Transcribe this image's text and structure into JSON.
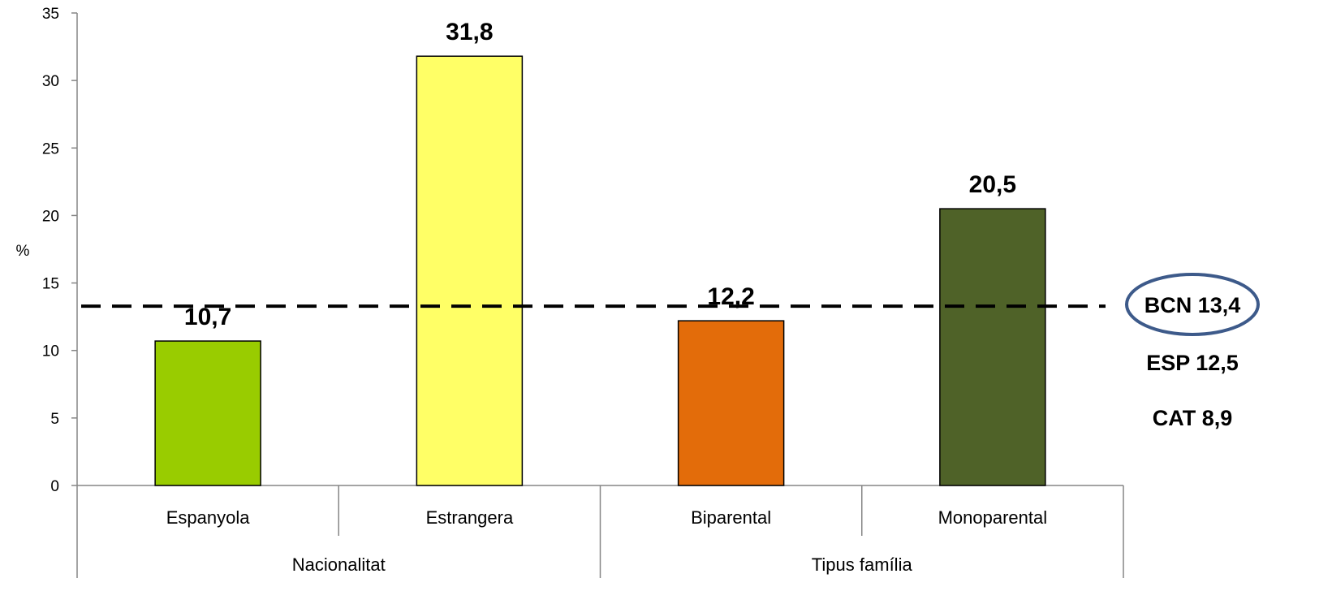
{
  "chart_data": {
    "type": "bar",
    "ylabel": "%",
    "ylim": [
      0,
      35
    ],
    "yticks": [
      "0",
      "5",
      "10",
      "15",
      "20",
      "25",
      "30",
      "35"
    ],
    "categories": [
      "Espanyola",
      "Estrangera",
      "Biparental",
      "Monoparental"
    ],
    "values": [
      10.7,
      31.8,
      12.2,
      20.5
    ],
    "value_labels": [
      "10,7",
      "31,8",
      "12,2",
      "20,5"
    ],
    "colors": [
      "#99cc00",
      "#ffff66",
      "#e36c0a",
      "#4f6228"
    ],
    "groups": [
      {
        "label": "Nacionalitat",
        "members": [
          "Espanyola",
          "Estrangera"
        ]
      },
      {
        "label": "Tipus família",
        "members": [
          "Biparental",
          "Monoparental"
        ]
      }
    ],
    "reference_line": {
      "value": 13.4,
      "style": "dashed"
    },
    "reference_labels": [
      "BCN 13,4",
      "ESP 12,5",
      "CAT 8,9"
    ],
    "highlight_color": "#3d5a8a"
  }
}
